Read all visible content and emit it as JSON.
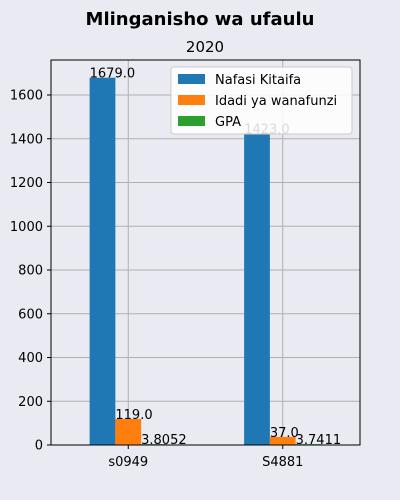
{
  "chart_data": {
    "type": "bar",
    "title": "Mlinganisho wa ufaulu",
    "subtitle": "2020",
    "xlabel": "",
    "ylabel": "",
    "categories": [
      "s0949",
      "S4881"
    ],
    "series": [
      {
        "name": "Nafasi Kitaifa",
        "values": [
          1679.0,
          1423.0
        ],
        "labels": [
          "1679.0",
          "1423.0"
        ],
        "color": "#1f77b4"
      },
      {
        "name": "Idadi ya wanafunzi",
        "values": [
          119.0,
          37.0
        ],
        "labels": [
          "119.0",
          "37.0"
        ],
        "color": "#ff7f0e"
      },
      {
        "name": "GPA",
        "values": [
          3.8052,
          3.7411
        ],
        "labels": [
          "3.8052",
          "3.7411"
        ],
        "color": "#2ca02c"
      }
    ],
    "ylim": [
      0,
      1760
    ],
    "yticks": [
      0,
      200,
      400,
      600,
      800,
      1000,
      1200,
      1400,
      1600
    ],
    "grid": true,
    "legend_position": "top-right",
    "background_color": "#eaeaf2",
    "plot_background_color": "#eaeaf2",
    "grid_color": "#b0b0b0"
  }
}
